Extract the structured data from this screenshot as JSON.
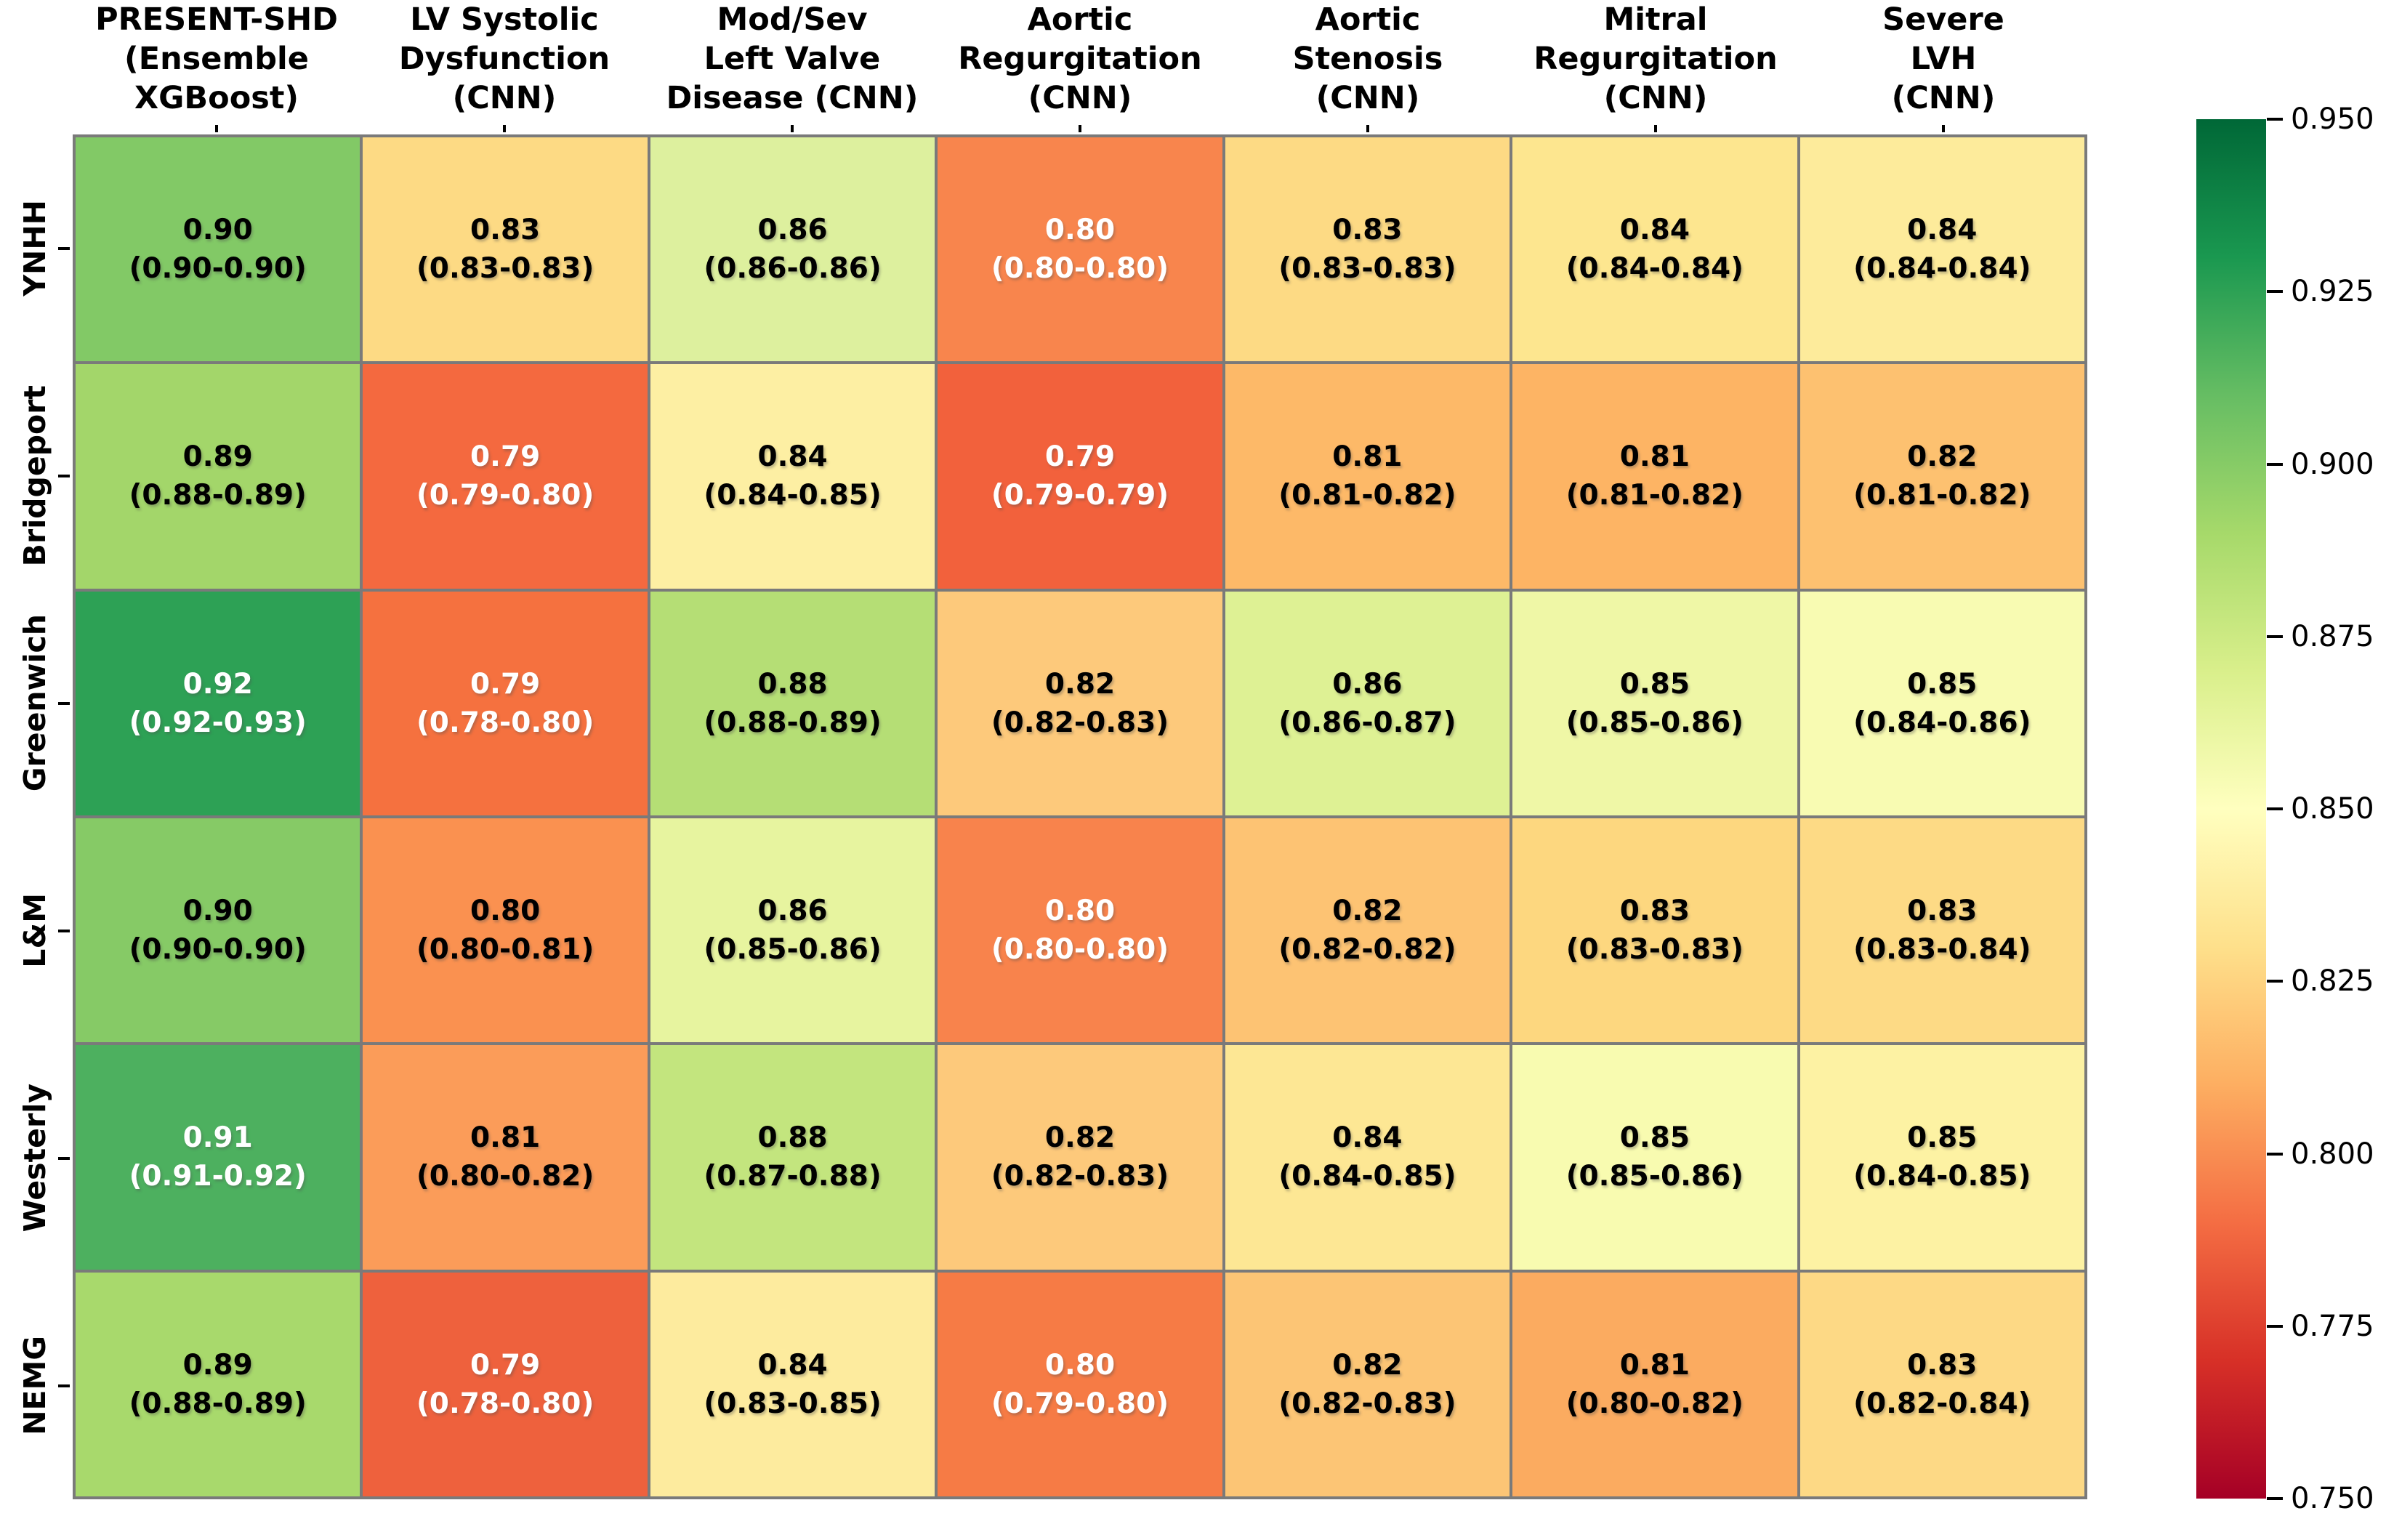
{
  "chart_data": {
    "type": "heatmap",
    "title": "",
    "columns": [
      "PRESENT-SHD\n(Ensemble\nXGBoost)",
      "LV Systolic\nDysfunction\n(CNN)",
      "Mod/Sev\nLeft Valve\nDisease (CNN)",
      "Aortic\nRegurgitation\n(CNN)",
      "Aortic\nStenosis\n(CNN)",
      "Mitral\nRegurgitation\n(CNN)",
      "Severe\nLVH\n(CNN)"
    ],
    "rows": [
      "YNHH",
      "Bridgeport",
      "Greenwich",
      "L&M",
      "Westerly",
      "NEMG"
    ],
    "values": [
      [
        0.9,
        0.83,
        0.86,
        0.8,
        0.83,
        0.84,
        0.84
      ],
      [
        0.89,
        0.79,
        0.84,
        0.79,
        0.81,
        0.81,
        0.82
      ],
      [
        0.92,
        0.79,
        0.88,
        0.82,
        0.86,
        0.85,
        0.85
      ],
      [
        0.9,
        0.8,
        0.86,
        0.8,
        0.82,
        0.83,
        0.83
      ],
      [
        0.91,
        0.81,
        0.88,
        0.82,
        0.84,
        0.85,
        0.85
      ],
      [
        0.89,
        0.79,
        0.84,
        0.8,
        0.82,
        0.81,
        0.83
      ]
    ],
    "cells": [
      [
        {
          "v": "0.90",
          "ci": "(0.90-0.90)",
          "bg": "#82c966",
          "fg": "#000000"
        },
        {
          "v": "0.83",
          "ci": "(0.83-0.83)",
          "bg": "#fdda84",
          "fg": "#000000"
        },
        {
          "v": "0.86",
          "ci": "(0.86-0.86)",
          "bg": "#ddf09e",
          "fg": "#000000"
        },
        {
          "v": "0.80",
          "ci": "(0.80-0.80)",
          "bg": "#f8854d",
          "fg": "#ffffff"
        },
        {
          "v": "0.83",
          "ci": "(0.83-0.83)",
          "bg": "#fdda84",
          "fg": "#000000"
        },
        {
          "v": "0.84",
          "ci": "(0.84-0.84)",
          "bg": "#fde68f",
          "fg": "#000000"
        },
        {
          "v": "0.84",
          "ci": "(0.84-0.84)",
          "bg": "#fdeb9b",
          "fg": "#000000"
        }
      ],
      [
        {
          "v": "0.89",
          "ci": "(0.88-0.89)",
          "bg": "#a3d66a",
          "fg": "#000000"
        },
        {
          "v": "0.79",
          "ci": "(0.79-0.80)",
          "bg": "#f4693f",
          "fg": "#ffffff"
        },
        {
          "v": "0.84",
          "ci": "(0.84-0.85)",
          "bg": "#fdefa3",
          "fg": "#000000"
        },
        {
          "v": "0.79",
          "ci": "(0.79-0.79)",
          "bg": "#f2613c",
          "fg": "#ffffff"
        },
        {
          "v": "0.81",
          "ci": "(0.81-0.82)",
          "bg": "#fdb968",
          "fg": "#000000"
        },
        {
          "v": "0.81",
          "ci": "(0.81-0.82)",
          "bg": "#fdb464",
          "fg": "#000000"
        },
        {
          "v": "0.82",
          "ci": "(0.81-0.82)",
          "bg": "#fdc170",
          "fg": "#000000"
        }
      ],
      [
        {
          "v": "0.92",
          "ci": "(0.92-0.93)",
          "bg": "#2da155",
          "fg": "#ffffff"
        },
        {
          "v": "0.79",
          "ci": "(0.78-0.80)",
          "bg": "#f5713f",
          "fg": "#ffffff"
        },
        {
          "v": "0.88",
          "ci": "(0.88-0.89)",
          "bg": "#b5de75",
          "fg": "#000000"
        },
        {
          "v": "0.82",
          "ci": "(0.82-0.83)",
          "bg": "#fdc97b",
          "fg": "#000000"
        },
        {
          "v": "0.86",
          "ci": "(0.86-0.87)",
          "bg": "#def194",
          "fg": "#000000"
        },
        {
          "v": "0.85",
          "ci": "(0.85-0.86)",
          "bg": "#eff7a6",
          "fg": "#000000"
        },
        {
          "v": "0.85",
          "ci": "(0.84-0.86)",
          "bg": "#f8fbb2",
          "fg": "#000000"
        }
      ],
      [
        {
          "v": "0.90",
          "ci": "(0.90-0.90)",
          "bg": "#86ca66",
          "fg": "#000000"
        },
        {
          "v": "0.80",
          "ci": "(0.80-0.81)",
          "bg": "#fa9150",
          "fg": "#000000"
        },
        {
          "v": "0.86",
          "ci": "(0.85-0.86)",
          "bg": "#e7f49f",
          "fg": "#000000"
        },
        {
          "v": "0.80",
          "ci": "(0.80-0.80)",
          "bg": "#f8834c",
          "fg": "#ffffff"
        },
        {
          "v": "0.82",
          "ci": "(0.82-0.82)",
          "bg": "#fdc373",
          "fg": "#000000"
        },
        {
          "v": "0.83",
          "ci": "(0.83-0.83)",
          "bg": "#fdd77f",
          "fg": "#000000"
        },
        {
          "v": "0.83",
          "ci": "(0.83-0.84)",
          "bg": "#fdda85",
          "fg": "#000000"
        }
      ],
      [
        {
          "v": "0.91",
          "ci": "(0.91-0.92)",
          "bg": "#4db05f",
          "fg": "#ffffff"
        },
        {
          "v": "0.81",
          "ci": "(0.80-0.82)",
          "bg": "#fb9c59",
          "fg": "#000000"
        },
        {
          "v": "0.88",
          "ci": "(0.87-0.88)",
          "bg": "#c3e57e",
          "fg": "#000000"
        },
        {
          "v": "0.82",
          "ci": "(0.82-0.83)",
          "bg": "#fdc97b",
          "fg": "#000000"
        },
        {
          "v": "0.84",
          "ci": "(0.84-0.85)",
          "bg": "#fde794",
          "fg": "#000000"
        },
        {
          "v": "0.85",
          "ci": "(0.85-0.86)",
          "bg": "#f8fbb0",
          "fg": "#000000"
        },
        {
          "v": "0.85",
          "ci": "(0.84-0.85)",
          "bg": "#fdf2a3",
          "fg": "#000000"
        }
      ],
      [
        {
          "v": "0.89",
          "ci": "(0.88-0.89)",
          "bg": "#a8d96c",
          "fg": "#000000"
        },
        {
          "v": "0.79",
          "ci": "(0.78-0.80)",
          "bg": "#ee613d",
          "fg": "#ffffff"
        },
        {
          "v": "0.84",
          "ci": "(0.83-0.85)",
          "bg": "#fdeb9e",
          "fg": "#000000"
        },
        {
          "v": "0.80",
          "ci": "(0.79-0.80)",
          "bg": "#f67b45",
          "fg": "#ffffff"
        },
        {
          "v": "0.82",
          "ci": "(0.82-0.83)",
          "bg": "#fcc575",
          "fg": "#000000"
        },
        {
          "v": "0.81",
          "ci": "(0.80-0.82)",
          "bg": "#fbab60",
          "fg": "#000000"
        },
        {
          "v": "0.83",
          "ci": "(0.82-0.84)",
          "bg": "#fdd985",
          "fg": "#000000"
        }
      ]
    ],
    "colorbar": {
      "cmap_name": "RdYlGn",
      "min": 0.75,
      "max": 0.95,
      "ticks": [
        "0.950",
        "0.925",
        "0.900",
        "0.875",
        "0.850",
        "0.825",
        "0.800",
        "0.775",
        "0.750"
      ],
      "gradient_top_to_bottom": [
        "#006837",
        "#1a9850",
        "#66bd63",
        "#a6d96a",
        "#d9ef8b",
        "#ffffbf",
        "#fee08b",
        "#fdae61",
        "#f46d43",
        "#d73027",
        "#a50026"
      ]
    },
    "grid_line_color": "#7a7a7a",
    "legend_position": "right"
  }
}
